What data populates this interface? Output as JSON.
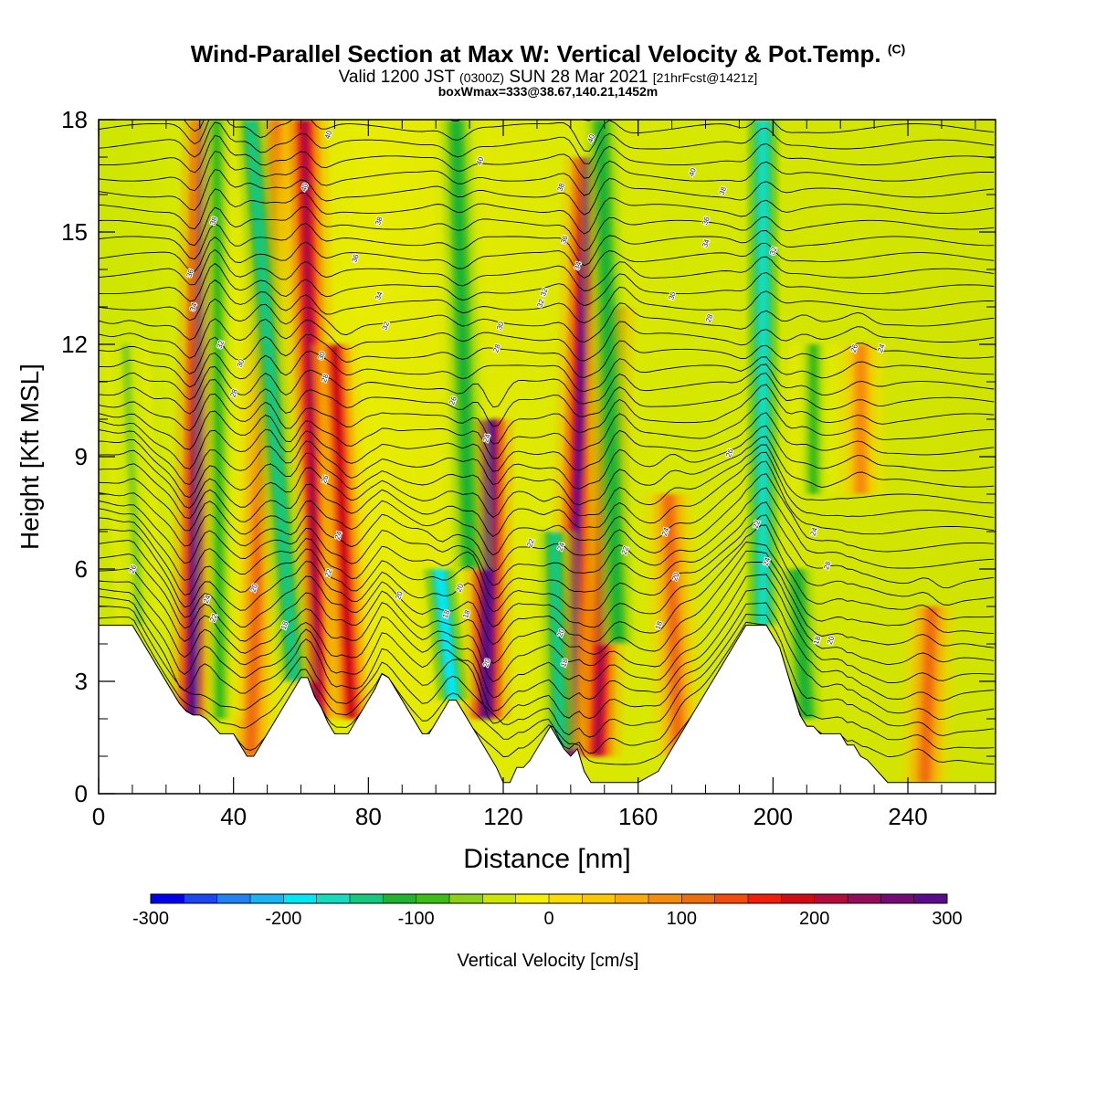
{
  "title": {
    "main": "Wind-Parallel Section at Max W: Vertical Velocity & Pot.Temp.",
    "copyright": "(C)",
    "valid_prefix": "Valid 1200 JST",
    "valid_utc": "(0300Z)",
    "valid_date": "SUN 28 Mar 2021",
    "forecast": "[21hrFcst@1421z]",
    "box": "boxWmax=333@38.67,140.21,1452m"
  },
  "chart_data": {
    "type": "heatmap",
    "xlabel": "Distance [nm]",
    "ylabel": "Height [Kft MSL]",
    "xlim": [
      0,
      266
    ],
    "ylim": [
      0,
      18
    ],
    "x_ticks": [
      0,
      40,
      80,
      120,
      160,
      200,
      240
    ],
    "y_ticks": [
      0,
      3,
      6,
      9,
      12,
      15,
      18
    ],
    "x_minor_step": 10,
    "y_minor_step": 1,
    "colorbar": {
      "label": "Vertical Velocity [cm/s]",
      "ticks": [
        -300,
        -200,
        -100,
        0,
        100,
        200,
        300
      ],
      "min": -300,
      "max": 300,
      "colors": [
        "#0000ee",
        "#1a46f5",
        "#1f82f5",
        "#19b4f5",
        "#00e8f5",
        "#14dcbe",
        "#14c87d",
        "#1eb432",
        "#3cbe14",
        "#8cd214",
        "#cde600",
        "#f5f000",
        "#fadc00",
        "#fac800",
        "#faaa00",
        "#f58c0a",
        "#f06e0a",
        "#f54a0a",
        "#f01e0a",
        "#d20a14",
        "#b40a3c",
        "#960a5a",
        "#780a78",
        "#5a0a8c"
      ]
    },
    "terrain": [
      [
        0,
        4.5
      ],
      [
        10,
        4.5
      ],
      [
        12,
        4.2
      ],
      [
        14,
        3.9
      ],
      [
        16,
        3.6
      ],
      [
        18,
        3.3
      ],
      [
        20,
        3.0
      ],
      [
        22,
        2.7
      ],
      [
        24,
        2.4
      ],
      [
        26,
        2.2
      ],
      [
        28,
        2.1
      ],
      [
        30,
        2.1
      ],
      [
        32,
        2.0
      ],
      [
        34,
        1.8
      ],
      [
        36,
        1.6
      ],
      [
        38,
        1.6
      ],
      [
        40,
        1.6
      ],
      [
        42,
        1.3
      ],
      [
        44,
        1.0
      ],
      [
        46,
        1.0
      ],
      [
        48,
        1.3
      ],
      [
        50,
        1.6
      ],
      [
        52,
        1.9
      ],
      [
        54,
        2.2
      ],
      [
        56,
        2.5
      ],
      [
        58,
        2.8
      ],
      [
        60,
        3.1
      ],
      [
        62,
        3.1
      ],
      [
        64,
        2.6
      ],
      [
        66,
        2.3
      ],
      [
        68,
        1.9
      ],
      [
        70,
        1.6
      ],
      [
        72,
        1.6
      ],
      [
        74,
        1.6
      ],
      [
        76,
        1.9
      ],
      [
        78,
        2.2
      ],
      [
        80,
        2.5
      ],
      [
        82,
        2.8
      ],
      [
        84,
        3.2
      ],
      [
        86,
        3.1
      ],
      [
        88,
        2.8
      ],
      [
        90,
        2.5
      ],
      [
        92,
        2.2
      ],
      [
        94,
        1.9
      ],
      [
        96,
        1.6
      ],
      [
        98,
        1.6
      ],
      [
        100,
        1.9
      ],
      [
        102,
        2.2
      ],
      [
        104,
        2.5
      ],
      [
        106,
        2.5
      ],
      [
        108,
        2.2
      ],
      [
        110,
        1.9
      ],
      [
        112,
        1.6
      ],
      [
        114,
        1.3
      ],
      [
        116,
        1.0
      ],
      [
        118,
        0.7
      ],
      [
        120,
        0.3
      ],
      [
        122,
        0.3
      ],
      [
        124,
        0.7
      ],
      [
        126,
        0.7
      ],
      [
        128,
        0.9
      ],
      [
        130,
        1.2
      ],
      [
        132,
        1.5
      ],
      [
        134,
        1.8
      ],
      [
        136,
        1.5
      ],
      [
        138,
        1.2
      ],
      [
        140,
        1.0
      ],
      [
        142,
        1.2
      ],
      [
        144,
        0.6
      ],
      [
        146,
        0.3
      ],
      [
        150,
        0.3
      ],
      [
        160,
        0.3
      ],
      [
        166,
        0.6
      ],
      [
        168,
        0.9
      ],
      [
        170,
        1.2
      ],
      [
        172,
        1.5
      ],
      [
        174,
        1.8
      ],
      [
        176,
        2.1
      ],
      [
        178,
        2.4
      ],
      [
        180,
        2.7
      ],
      [
        182,
        3.0
      ],
      [
        184,
        3.3
      ],
      [
        186,
        3.6
      ],
      [
        188,
        3.9
      ],
      [
        190,
        4.2
      ],
      [
        192,
        4.5
      ],
      [
        198,
        4.5
      ],
      [
        200,
        4.2
      ],
      [
        202,
        3.9
      ],
      [
        204,
        3.3
      ],
      [
        206,
        2.7
      ],
      [
        208,
        2.1
      ],
      [
        210,
        1.8
      ],
      [
        212,
        1.8
      ],
      [
        214,
        1.6
      ],
      [
        216,
        1.6
      ],
      [
        218,
        1.6
      ],
      [
        220,
        1.6
      ],
      [
        222,
        1.3
      ],
      [
        224,
        1.3
      ],
      [
        226,
        1.0
      ],
      [
        228,
        0.9
      ],
      [
        230,
        0.7
      ],
      [
        232,
        0.5
      ],
      [
        234,
        0.3
      ],
      [
        236,
        0.3
      ],
      [
        266,
        0.3
      ]
    ],
    "updraft_bands": [
      {
        "x": 28,
        "top": 18,
        "bottom": 2,
        "tilt": 4,
        "w": 300
      },
      {
        "x": 45,
        "top": 18,
        "bottom": 1,
        "tilt": 7,
        "w": 120
      },
      {
        "x": 65,
        "top": 18,
        "bottom": 2,
        "tilt": -4,
        "w": 200
      },
      {
        "x": 75,
        "top": 12,
        "bottom": 2,
        "tilt": -5,
        "w": 180
      },
      {
        "x": 115,
        "top": 10,
        "bottom": 2,
        "tilt": 1,
        "w": 333
      },
      {
        "x": 140,
        "top": 17,
        "bottom": 1,
        "tilt": 5,
        "w": 250
      },
      {
        "x": 148,
        "top": 13,
        "bottom": 1,
        "tilt": 4,
        "w": 220
      },
      {
        "x": 172,
        "top": 8,
        "bottom": 1,
        "tilt": -3,
        "w": 120
      },
      {
        "x": 226,
        "top": 12,
        "bottom": 8,
        "tilt": 0,
        "w": 90
      },
      {
        "x": 245,
        "top": 5,
        "bottom": 0.3,
        "tilt": 2,
        "w": 110
      }
    ],
    "downdraft_bands": [
      {
        "x": 12,
        "top": 12,
        "bottom": 4.5,
        "tilt": -4,
        "w": -60
      },
      {
        "x": 36,
        "top": 18,
        "bottom": 2,
        "tilt": -1,
        "w": -90
      },
      {
        "x": 58,
        "top": 18,
        "bottom": 3,
        "tilt": -13,
        "w": -140
      },
      {
        "x": 105,
        "top": 6,
        "bottom": 2.5,
        "tilt": -4,
        "w": -180
      },
      {
        "x": 110,
        "top": 18,
        "bottom": 6,
        "tilt": -4,
        "w": -110
      },
      {
        "x": 137,
        "top": 7,
        "bottom": 1.2,
        "tilt": -2,
        "w": -150
      },
      {
        "x": 154,
        "top": 18,
        "bottom": 4,
        "tilt": -5,
        "w": -110
      },
      {
        "x": 197,
        "top": 18,
        "bottom": 4.5,
        "tilt": 0,
        "w": -170
      },
      {
        "x": 210,
        "top": 6,
        "bottom": 2,
        "tilt": -3,
        "w": -120
      },
      {
        "x": 212,
        "top": 12,
        "bottom": 8,
        "tilt": 0,
        "w": -80
      }
    ],
    "theta_labels": [
      {
        "x": 10,
        "y": 6,
        "text": "26"
      },
      {
        "x": 32,
        "y": 5.2,
        "text": "24"
      },
      {
        "x": 34,
        "y": 4.7,
        "text": "22"
      },
      {
        "x": 46,
        "y": 5.5,
        "text": "20"
      },
      {
        "x": 55,
        "y": 4.5,
        "text": "18"
      },
      {
        "x": 68,
        "y": 17.6,
        "text": "40"
      },
      {
        "x": 34,
        "y": 15.3,
        "text": "38"
      },
      {
        "x": 27,
        "y": 13.9,
        "text": "36"
      },
      {
        "x": 28,
        "y": 13.0,
        "text": "34"
      },
      {
        "x": 36,
        "y": 12.0,
        "text": "32"
      },
      {
        "x": 42,
        "y": 11.5,
        "text": "30"
      },
      {
        "x": 40,
        "y": 10.7,
        "text": "28"
      },
      {
        "x": 61,
        "y": 16.2,
        "text": "40"
      },
      {
        "x": 83,
        "y": 15.3,
        "text": "38"
      },
      {
        "x": 76,
        "y": 14.3,
        "text": "36"
      },
      {
        "x": 83,
        "y": 13.3,
        "text": "34"
      },
      {
        "x": 85,
        "y": 12.5,
        "text": "32"
      },
      {
        "x": 66,
        "y": 11.7,
        "text": "30"
      },
      {
        "x": 67,
        "y": 11.1,
        "text": "28"
      },
      {
        "x": 67,
        "y": 8.4,
        "text": "26"
      },
      {
        "x": 71,
        "y": 6.9,
        "text": "24"
      },
      {
        "x": 68,
        "y": 5.9,
        "text": "22"
      },
      {
        "x": 89,
        "y": 5.3,
        "text": "20"
      },
      {
        "x": 103,
        "y": 4.8,
        "text": "18"
      },
      {
        "x": 113,
        "y": 16.9,
        "text": "40"
      },
      {
        "x": 137,
        "y": 16.2,
        "text": "38"
      },
      {
        "x": 138,
        "y": 14.8,
        "text": "36"
      },
      {
        "x": 142,
        "y": 14.1,
        "text": "34"
      },
      {
        "x": 131,
        "y": 13.1,
        "text": "32"
      },
      {
        "x": 119,
        "y": 12.5,
        "text": "30"
      },
      {
        "x": 118,
        "y": 11.9,
        "text": "28"
      },
      {
        "x": 105,
        "y": 10.5,
        "text": "26"
      },
      {
        "x": 115,
        "y": 9.5,
        "text": "24"
      },
      {
        "x": 128,
        "y": 6.7,
        "text": "22"
      },
      {
        "x": 107,
        "y": 5.5,
        "text": "20"
      },
      {
        "x": 109,
        "y": 4.8,
        "text": "18"
      },
      {
        "x": 115,
        "y": 3.5,
        "text": "20"
      },
      {
        "x": 137,
        "y": 6.6,
        "text": "24"
      },
      {
        "x": 137,
        "y": 4.3,
        "text": "20"
      },
      {
        "x": 138,
        "y": 3.5,
        "text": "18"
      },
      {
        "x": 146,
        "y": 17.5,
        "text": "40"
      },
      {
        "x": 132,
        "y": 13.4,
        "text": "32"
      },
      {
        "x": 156,
        "y": 6.5,
        "text": "22"
      },
      {
        "x": 168,
        "y": 7.0,
        "text": "24"
      },
      {
        "x": 171,
        "y": 5.8,
        "text": "20"
      },
      {
        "x": 166,
        "y": 4.5,
        "text": "18"
      },
      {
        "x": 176,
        "y": 16.6,
        "text": "40"
      },
      {
        "x": 185,
        "y": 16.1,
        "text": "38"
      },
      {
        "x": 180,
        "y": 15.3,
        "text": "36"
      },
      {
        "x": 180,
        "y": 14.7,
        "text": "34"
      },
      {
        "x": 170,
        "y": 13.3,
        "text": "30"
      },
      {
        "x": 181,
        "y": 12.7,
        "text": "28"
      },
      {
        "x": 187,
        "y": 9.1,
        "text": "26"
      },
      {
        "x": 195,
        "y": 7.2,
        "text": "22"
      },
      {
        "x": 198,
        "y": 6.2,
        "text": "24"
      },
      {
        "x": 200,
        "y": 14.5,
        "text": "32"
      },
      {
        "x": 212,
        "y": 7.0,
        "text": "24"
      },
      {
        "x": 216,
        "y": 6.1,
        "text": "28"
      },
      {
        "x": 213,
        "y": 4.1,
        "text": "18"
      },
      {
        "x": 217,
        "y": 4.1,
        "text": "20"
      },
      {
        "x": 224,
        "y": 11.9,
        "text": "26"
      },
      {
        "x": 232,
        "y": 11.9,
        "text": "24"
      }
    ]
  }
}
